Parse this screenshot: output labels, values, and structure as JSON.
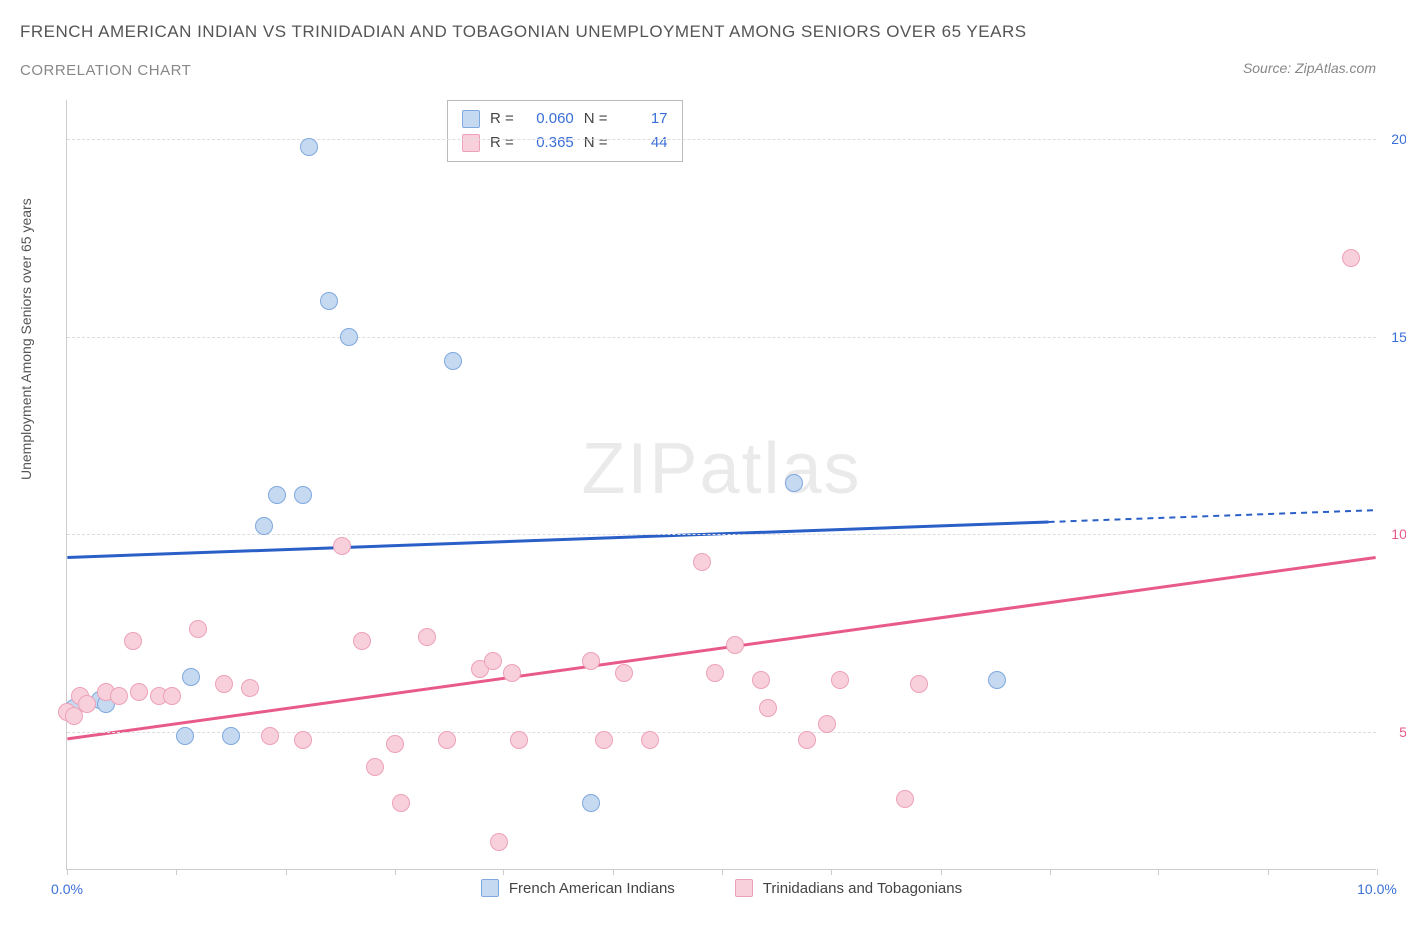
{
  "title_main": "FRENCH AMERICAN INDIAN VS TRINIDADIAN AND TOBAGONIAN UNEMPLOYMENT AMONG SENIORS OVER 65 YEARS",
  "title_sub": "CORRELATION CHART",
  "source_text": "Source: ZipAtlas.com",
  "watermark_text_1": "ZIP",
  "watermark_text_2": "atlas",
  "y_axis_label": "Unemployment Among Seniors over 65 years",
  "chart": {
    "type": "scatter",
    "xlim": [
      0,
      10
    ],
    "ylim": [
      1.5,
      21
    ],
    "x_ticks": [
      {
        "val": 0,
        "label": "0.0%"
      },
      {
        "val": 0.83,
        "label": ""
      },
      {
        "val": 1.67,
        "label": ""
      },
      {
        "val": 2.5,
        "label": ""
      },
      {
        "val": 3.33,
        "label": ""
      },
      {
        "val": 4.17,
        "label": ""
      },
      {
        "val": 5.0,
        "label": ""
      },
      {
        "val": 5.83,
        "label": ""
      },
      {
        "val": 6.67,
        "label": ""
      },
      {
        "val": 7.5,
        "label": ""
      },
      {
        "val": 8.33,
        "label": ""
      },
      {
        "val": 9.17,
        "label": ""
      },
      {
        "val": 10,
        "label": "10.0%"
      }
    ],
    "y_ticks": [
      {
        "val": 5,
        "label": "5.0%",
        "color": "#e85a8a"
      },
      {
        "val": 10,
        "label": "10.0%",
        "color": "#e85a8a"
      },
      {
        "val": 15,
        "label": "15.0%",
        "color": "#3a6fd8"
      },
      {
        "val": 20,
        "label": "20.0%",
        "color": "#3a6fd8"
      }
    ],
    "grid_color": "#dddddd",
    "series": [
      {
        "name": "French American Indians",
        "fill": "#c5d9f1",
        "stroke": "#7fa8e0",
        "trend_color": "#2a5fc8",
        "marker_r": 9,
        "correlation": {
          "R": "0.060",
          "N": "17"
        },
        "trend": {
          "x1": 0,
          "y1": 9.4,
          "x2": 7.5,
          "y2": 10.3,
          "x3": 10,
          "y3": 10.6
        },
        "points": [
          {
            "x": 0.05,
            "y": 5.6
          },
          {
            "x": 0.25,
            "y": 5.8
          },
          {
            "x": 0.3,
            "y": 5.7
          },
          {
            "x": 0.9,
            "y": 4.9
          },
          {
            "x": 0.95,
            "y": 6.4
          },
          {
            "x": 1.25,
            "y": 4.9
          },
          {
            "x": 1.5,
            "y": 10.2
          },
          {
            "x": 1.6,
            "y": 11.0
          },
          {
            "x": 1.8,
            "y": 11.0
          },
          {
            "x": 1.85,
            "y": 19.8
          },
          {
            "x": 2.0,
            "y": 15.9
          },
          {
            "x": 2.15,
            "y": 15.0
          },
          {
            "x": 2.95,
            "y": 14.4
          },
          {
            "x": 4.0,
            "y": 3.2
          },
          {
            "x": 5.55,
            "y": 11.3
          },
          {
            "x": 7.1,
            "y": 6.3
          }
        ]
      },
      {
        "name": "Trinidadians and Tobagonians",
        "fill": "#f8d0dc",
        "stroke": "#eda1b8",
        "trend_color": "#e85a8a",
        "marker_r": 9,
        "correlation": {
          "R": "0.365",
          "N": "44"
        },
        "trend": {
          "x1": 0,
          "y1": 4.8,
          "x2": 10,
          "y2": 9.4,
          "x3": 10,
          "y3": 9.4
        },
        "points": [
          {
            "x": 0.0,
            "y": 5.5
          },
          {
            "x": 0.05,
            "y": 5.4
          },
          {
            "x": 0.1,
            "y": 5.9
          },
          {
            "x": 0.15,
            "y": 5.7
          },
          {
            "x": 0.3,
            "y": 6.0
          },
          {
            "x": 0.4,
            "y": 5.9
          },
          {
            "x": 0.5,
            "y": 7.3
          },
          {
            "x": 0.55,
            "y": 6.0
          },
          {
            "x": 0.7,
            "y": 5.9
          },
          {
            "x": 0.8,
            "y": 5.9
          },
          {
            "x": 1.0,
            "y": 7.6
          },
          {
            "x": 1.2,
            "y": 6.2
          },
          {
            "x": 1.4,
            "y": 6.1
          },
          {
            "x": 1.55,
            "y": 4.9
          },
          {
            "x": 1.8,
            "y": 4.8
          },
          {
            "x": 2.1,
            "y": 9.7
          },
          {
            "x": 2.25,
            "y": 7.3
          },
          {
            "x": 2.35,
            "y": 4.1
          },
          {
            "x": 2.5,
            "y": 4.7
          },
          {
            "x": 2.55,
            "y": 3.2
          },
          {
            "x": 2.75,
            "y": 7.4
          },
          {
            "x": 2.9,
            "y": 4.8
          },
          {
            "x": 3.15,
            "y": 6.6
          },
          {
            "x": 3.25,
            "y": 6.8
          },
          {
            "x": 3.3,
            "y": 2.2
          },
          {
            "x": 3.4,
            "y": 6.5
          },
          {
            "x": 3.45,
            "y": 4.8
          },
          {
            "x": 4.0,
            "y": 6.8
          },
          {
            "x": 4.1,
            "y": 4.8
          },
          {
            "x": 4.25,
            "y": 6.5
          },
          {
            "x": 4.45,
            "y": 4.8
          },
          {
            "x": 4.85,
            "y": 9.3
          },
          {
            "x": 4.95,
            "y": 6.5
          },
          {
            "x": 5.1,
            "y": 7.2
          },
          {
            "x": 5.3,
            "y": 6.3
          },
          {
            "x": 5.35,
            "y": 5.6
          },
          {
            "x": 5.65,
            "y": 4.8
          },
          {
            "x": 5.8,
            "y": 5.2
          },
          {
            "x": 5.9,
            "y": 6.3
          },
          {
            "x": 6.4,
            "y": 3.3
          },
          {
            "x": 6.5,
            "y": 6.2
          },
          {
            "x": 9.8,
            "y": 17.0
          }
        ]
      }
    ],
    "legend": {
      "label_R": "R =",
      "label_N": "N ="
    }
  }
}
